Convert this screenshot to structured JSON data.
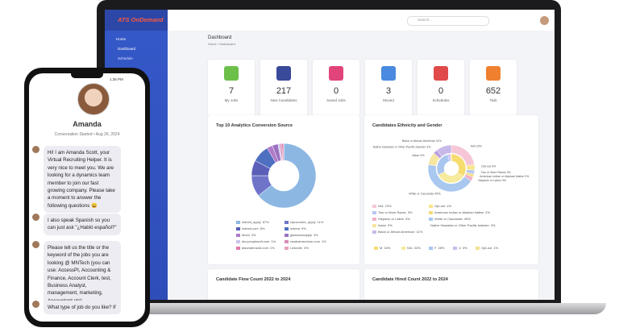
{
  "header": {
    "logo": "ATS OnDemand",
    "search_placeholder": "Search..."
  },
  "sidebar": [
    "Home",
    "Dashboard",
    "Schedule"
  ],
  "page": {
    "title": "Dashboard",
    "breadcrumb": [
      "Home",
      "Dashboard"
    ]
  },
  "stats": [
    {
      "value": 7,
      "label": "My Jobs",
      "color": "#6cc04a"
    },
    {
      "value": 217,
      "label": "New Candidates",
      "color": "#3a4a9a"
    },
    {
      "value": 0,
      "label": "Saved Jobs",
      "color": "#e0447a"
    },
    {
      "value": 3,
      "label": "Moved",
      "color": "#4a8ae0"
    },
    {
      "value": 0,
      "label": "Schedules",
      "color": "#e04a4a"
    },
    {
      "value": 652,
      "label": "Task",
      "color": "#f08030"
    }
  ],
  "chart_data": [
    {
      "type": "pie",
      "title": "Top 10 Analytics Conversion Source",
      "categories": [
        "indeed_apply",
        "ziprecruiter_apply",
        "indeed.com",
        "indeed",
        "direct",
        "glassdoorapply",
        "dev.peoplesoft.com",
        "readcareerdone.com",
        "atsondemand.com",
        "LinkedIn"
      ],
      "values": [
        67,
        11,
        8,
        9,
        3,
        3,
        1,
        1,
        1,
        0
      ],
      "value_labels": [
        "67%",
        "11%",
        "8%",
        "9%",
        "3%",
        "3%",
        "1%",
        "1%",
        "1%",
        "0%"
      ],
      "colors": [
        "#8db7e3",
        "#6f74c9",
        "#5b5fb8",
        "#4f6fc0",
        "#b07ac8",
        "#9a72c0",
        "#c9c3e8",
        "#d98ab8",
        "#e07aa8",
        "#e8a0c0"
      ]
    },
    {
      "type": "pie",
      "title": "Candidates Ethnicity and Gender",
      "rings": [
        {
          "categories": [
            "N/A",
            "Opt-out",
            "Two or More Races",
            "American Indian or Alaskan Native",
            "Hispanic or Latino",
            "White or Caucasian",
            "Asian",
            "Native Hawaiian or Other Pacific Islander",
            "Black or African American"
          ],
          "values": [
            23,
            4,
            3,
            2,
            3,
            45,
            9,
            3,
            11
          ],
          "value_labels": [
            "23%",
            "4%",
            "3%",
            "2%",
            "3%",
            "45%",
            "9%",
            "3%",
            "11%"
          ],
          "colors": [
            "#f6c6d6",
            "#f7e58a",
            "#b8c8f0",
            "#f3dc7a",
            "#f0b0c8",
            "#a8c8f0",
            "#f5e6a0",
            "#b9a0e0",
            "#c8b8e8"
          ]
        },
        {
          "categories": [
            "M",
            "N/A",
            "F",
            "U",
            "Opt-out"
          ],
          "values": [
            34,
            33,
            28,
            3,
            1
          ],
          "value_labels": [
            "34%",
            "33%",
            "28%",
            "3%",
            "1%"
          ],
          "colors": [
            "#f7dc70",
            "#f6ea9c",
            "#a9c6f0",
            "#cbbbee",
            "#f3e090"
          ]
        }
      ]
    }
  ],
  "panels": [
    "Candidate Flow Count 2022 to 2024",
    "Candidate Hired Count 2022 to 2024"
  ],
  "chat": {
    "time": "1:36 PM",
    "name": "Amanda",
    "started": "Conversation Started • Aug 26, 2024",
    "messages": [
      "Hi! I am Amanda Scott, your Virtual Recruiting Helper. It is very nice to meet you. We are looking for a dynamics team member to join our fast growing company. Please take a moment to answer the following questions 😀",
      "I also speak Spanish so you can just ask \"¿Habló español?\"",
      "Please tell us the title or the keyword of the jobs you are looking @ MNTech (you can use: AccessPI, Accounting & Finance, Account Clerk, test, Business Analyst, management, marketing, Accountant etc)",
      "What type of job do you like? If"
    ]
  }
}
